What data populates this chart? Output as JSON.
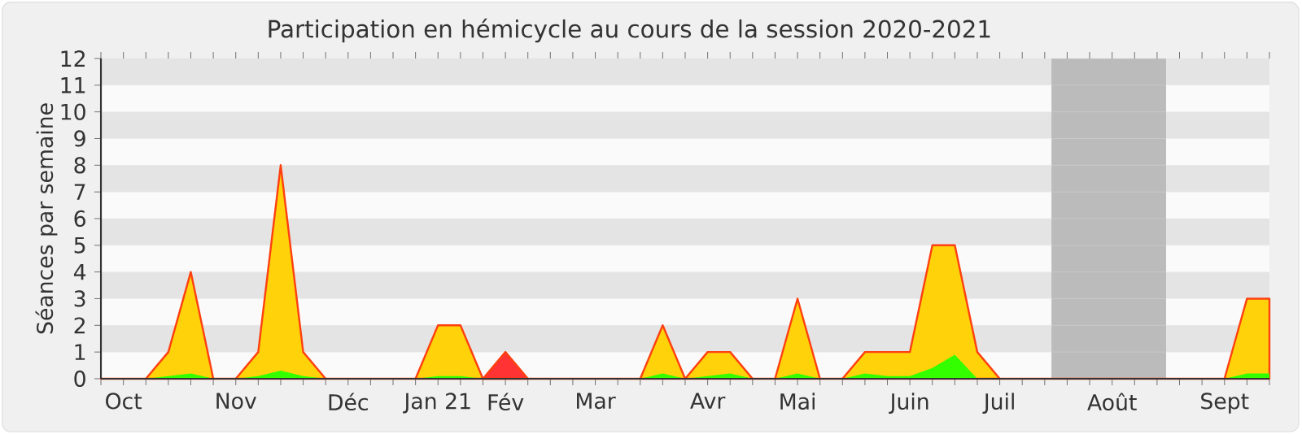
{
  "chart_data": {
    "type": "area",
    "stacked": true,
    "title": "Participation en hémicycle au cours de la session 2020-2021",
    "ylabel": "Séances par semaine",
    "categories": [
      null,
      "Oct",
      null,
      null,
      null,
      null,
      "Nov",
      null,
      null,
      null,
      null,
      "Déc",
      null,
      null,
      null,
      "Jan 21",
      null,
      null,
      "Fév",
      null,
      null,
      null,
      "Mar",
      null,
      null,
      null,
      null,
      "Avr",
      null,
      null,
      null,
      "Mai",
      null,
      null,
      null,
      null,
      "Juin",
      null,
      null,
      null,
      "Juil",
      null,
      null,
      null,
      null,
      "Août",
      null,
      null,
      null,
      null,
      "Sept",
      null,
      null
    ],
    "series": [
      {
        "color": "#33ff00",
        "values": [
          0,
          0,
          0,
          0.1,
          0.2,
          0,
          0,
          0.1,
          0.3,
          0.1,
          0,
          0,
          0,
          0,
          0,
          0.1,
          0.1,
          0,
          0,
          0,
          0,
          0,
          0,
          0,
          0,
          0.2,
          0,
          0.1,
          0.2,
          0,
          0,
          0.2,
          0,
          0,
          0.2,
          0.1,
          0.1,
          0.4,
          0.9,
          0,
          0,
          0,
          0,
          0,
          0,
          0,
          0,
          0,
          0,
          0,
          0,
          0.2,
          0.2
        ]
      },
      {
        "color": "#ffd20a",
        "values": [
          0,
          0,
          0,
          0.9,
          3.8,
          0,
          0,
          0.9,
          7.7,
          0.9,
          0,
          0,
          0,
          0,
          0,
          1.9,
          1.9,
          0,
          0,
          0,
          0,
          0,
          0,
          0,
          0,
          1.8,
          0,
          0.9,
          0.8,
          0,
          0,
          2.8,
          0,
          0,
          0.8,
          0.9,
          0.9,
          4.6,
          4.1,
          1,
          0,
          0,
          0,
          0,
          0,
          0,
          0,
          0,
          0,
          0,
          0,
          2.8,
          2.8
        ]
      },
      {
        "color": "#ff3333",
        "values": [
          null,
          null,
          null,
          null,
          null,
          null,
          null,
          null,
          null,
          null,
          null,
          null,
          null,
          null,
          null,
          null,
          null,
          0,
          1,
          0,
          null,
          null,
          null,
          null,
          null,
          null,
          null,
          null,
          null,
          null,
          null,
          null,
          null,
          null,
          null,
          null,
          null,
          null,
          null,
          null,
          null,
          null,
          null,
          null,
          null,
          null,
          null,
          null,
          null,
          null,
          null,
          null,
          null
        ]
      }
    ],
    "ylim": [
      0,
      12
    ],
    "yticks": [
      0,
      1,
      2,
      3,
      4,
      5,
      6,
      7,
      8,
      9,
      10,
      11,
      12
    ],
    "grid": "y"
  }
}
